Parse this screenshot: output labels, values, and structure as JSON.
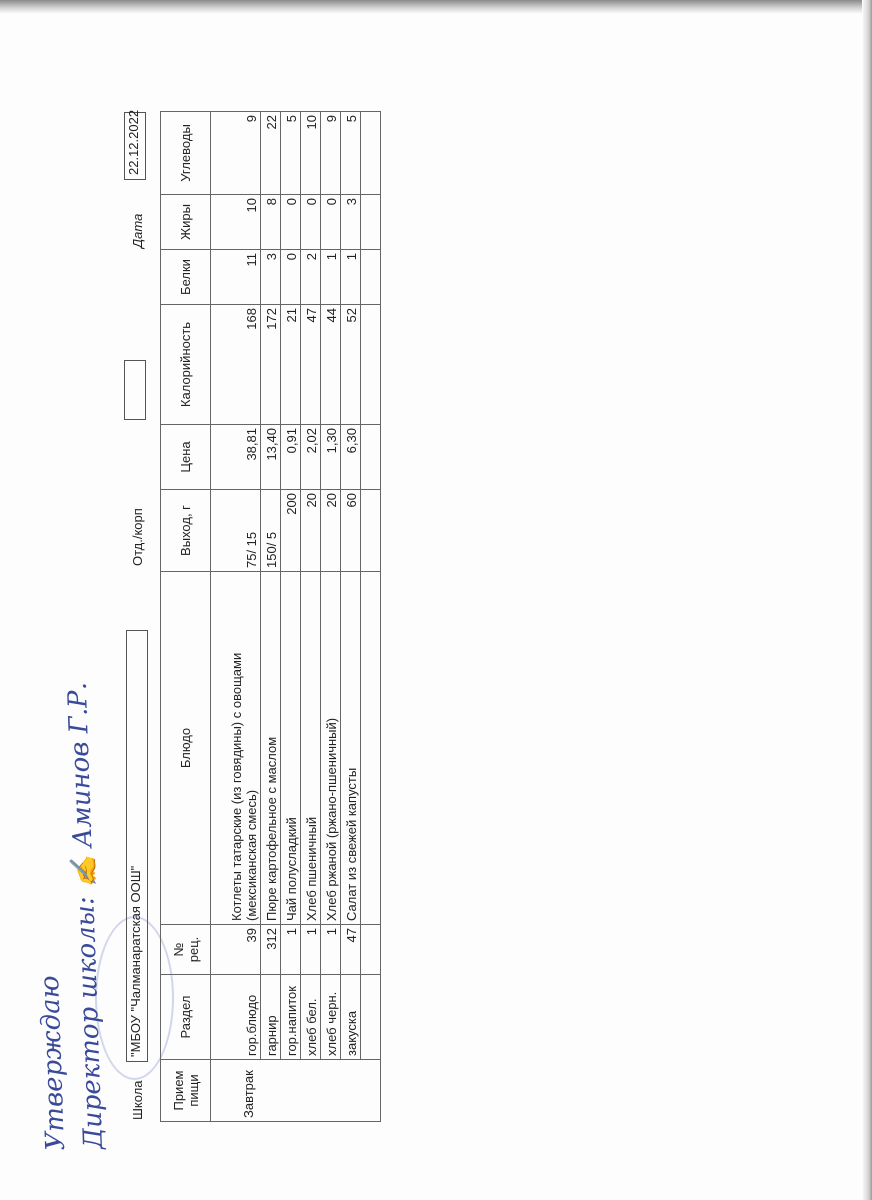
{
  "approval": {
    "line1": "Утверждаю",
    "line2": "Директор школы:",
    "name": "Аминов Г.Р."
  },
  "header": {
    "school_label": "Школа",
    "school_value": "\"МБОУ \"Чалманаратская ООШ\"",
    "dept_label": "Отд./корп",
    "dept_value": "",
    "date_label": "Дата",
    "date_value": "22.12.2022"
  },
  "table": {
    "columns": [
      "Прием пищи",
      "Раздел",
      "№ рец.",
      "Блюдо",
      "Выход, г",
      "Цена",
      "Калорийность",
      "Белки",
      "Жиры",
      "Углеводы"
    ],
    "meal": "Завтрак",
    "rows": [
      {
        "section": "гор.блюдо",
        "recipe": "39",
        "dish": "Котлеты татарские (из говядины) с овощами (мексиканская смесь)",
        "yield": "75/ 15",
        "price": "38,81",
        "kcal": "168",
        "protein": "11",
        "fat": "10",
        "carbs": "9"
      },
      {
        "section": "гарнир",
        "recipe": "312",
        "dish": "Пюре картофельное с маслом",
        "yield": "150/ 5",
        "price": "13,40",
        "kcal": "172",
        "protein": "3",
        "fat": "8",
        "carbs": "22"
      },
      {
        "section": "гор.напиток",
        "recipe": "1",
        "dish": "Чай полусладкий",
        "yield": "200",
        "price": "0,91",
        "kcal": "21",
        "protein": "0",
        "fat": "0",
        "carbs": "5"
      },
      {
        "section": "хлеб бел.",
        "recipe": "1",
        "dish": "Хлеб пшеничный",
        "yield": "20",
        "price": "2,02",
        "kcal": "47",
        "protein": "2",
        "fat": "0",
        "carbs": "10"
      },
      {
        "section": "хлеб черн.",
        "recipe": "1",
        "dish": "Хлеб ржаной (ржано-пшеничный)",
        "yield": "20",
        "price": "1,30",
        "kcal": "44",
        "protein": "1",
        "fat": "0",
        "carbs": "9"
      },
      {
        "section": "закуска",
        "recipe": "47",
        "dish": "Салат из свежей капусты",
        "yield": "60",
        "price": "6,30",
        "kcal": "52",
        "protein": "1",
        "fat": "3",
        "carbs": "5"
      }
    ]
  }
}
